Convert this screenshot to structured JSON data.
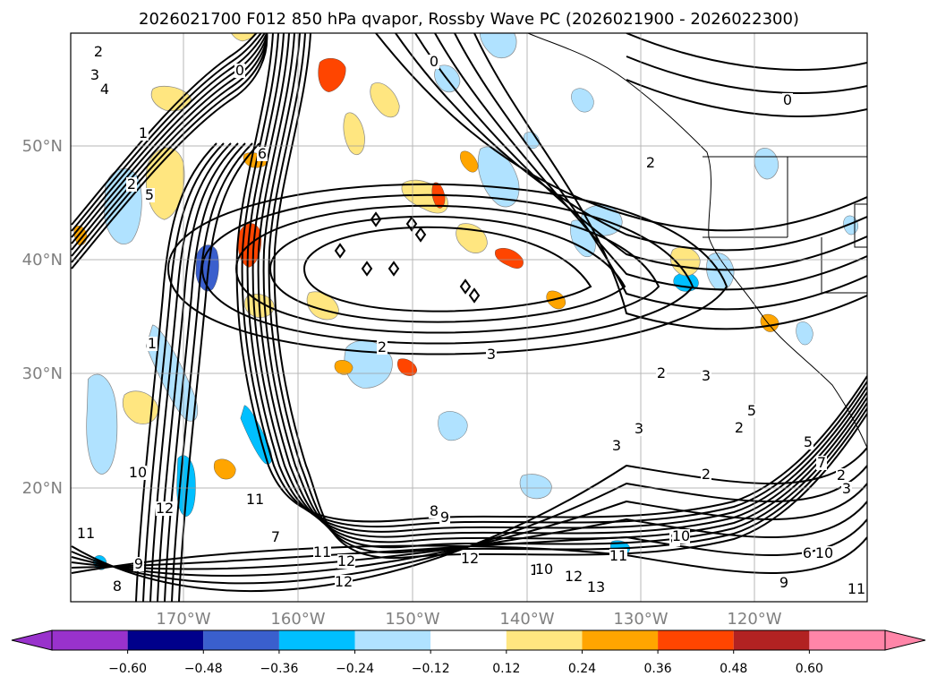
{
  "chart_data": {
    "type": "map-contour",
    "title": "2026021700 F012 850 hPa qvapor, Rossby Wave PC (2026021900 - 2026022300)",
    "grid": true,
    "x_ticks": [
      "170°W",
      "160°W",
      "150°W",
      "140°W",
      "130°W",
      "120°W"
    ],
    "y_ticks": [
      "50°N",
      "40°N",
      "30°N",
      "20°N"
    ],
    "colorbar": {
      "ticks": [
        "−0.60",
        "−0.48",
        "−0.36",
        "−0.24",
        "−0.12",
        "0.12",
        "0.24",
        "0.36",
        "0.48",
        "0.60"
      ],
      "colors": [
        "#9932CC",
        "#00008B",
        "#3A5FCD",
        "#00BFFF",
        "#B0E2FF",
        "#FFFFFF",
        "#FFE680",
        "#FFA500",
        "#FF4500",
        "#B22222",
        "#FF85A8"
      ],
      "extend": "both"
    },
    "contour_labels": [
      "2",
      "3",
      "4",
      "0",
      "1",
      "2",
      "5",
      "6",
      "0",
      "2",
      "0",
      "1",
      "2",
      "3",
      "2",
      "3",
      "5",
      "3",
      "2",
      "3",
      "2",
      "3",
      "7",
      "5",
      "6",
      "8",
      "10",
      "10",
      "12",
      "11",
      "9",
      "8",
      "12",
      "7",
      "11",
      "12",
      "12",
      "8",
      "9",
      "10",
      "12",
      "13",
      "11",
      "10",
      "9",
      "11",
      "11",
      "10",
      "2"
    ],
    "anomaly_patches": [
      {
        "level": -0.48
      },
      {
        "level": -0.36
      },
      {
        "level": -0.36
      },
      {
        "level": -0.24
      },
      {
        "level": -0.24
      },
      {
        "level": -0.24
      },
      {
        "level": -0.36
      },
      {
        "level": -0.24
      },
      {
        "level": -0.24
      },
      {
        "level": -0.24
      },
      {
        "level": -0.36
      },
      {
        "level": -0.36
      },
      {
        "level": 0.36
      },
      {
        "level": 0.36
      },
      {
        "level": 0.36
      },
      {
        "level": 0.24
      },
      {
        "level": 0.24
      },
      {
        "level": 0.24
      },
      {
        "level": 0.36
      },
      {
        "level": 0.24
      },
      {
        "level": 0.24
      },
      {
        "level": 0.24
      },
      {
        "level": 0.36
      },
      {
        "level": 0.24
      }
    ]
  }
}
